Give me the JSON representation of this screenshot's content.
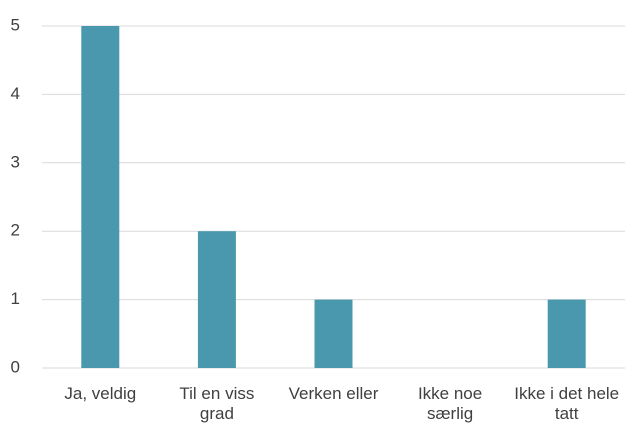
{
  "chart_data": {
    "type": "bar",
    "categories": [
      "Ja, veldig",
      "Til en viss grad",
      "Verken eller",
      "Ikke noe særlig",
      "Ikke i det hele tatt"
    ],
    "values": [
      5,
      2,
      1,
      0,
      1
    ],
    "color": "#4a98ae",
    "ylim": [
      0,
      5
    ],
    "yticks": [
      0,
      1,
      2,
      3,
      4,
      5
    ],
    "grid": true
  }
}
